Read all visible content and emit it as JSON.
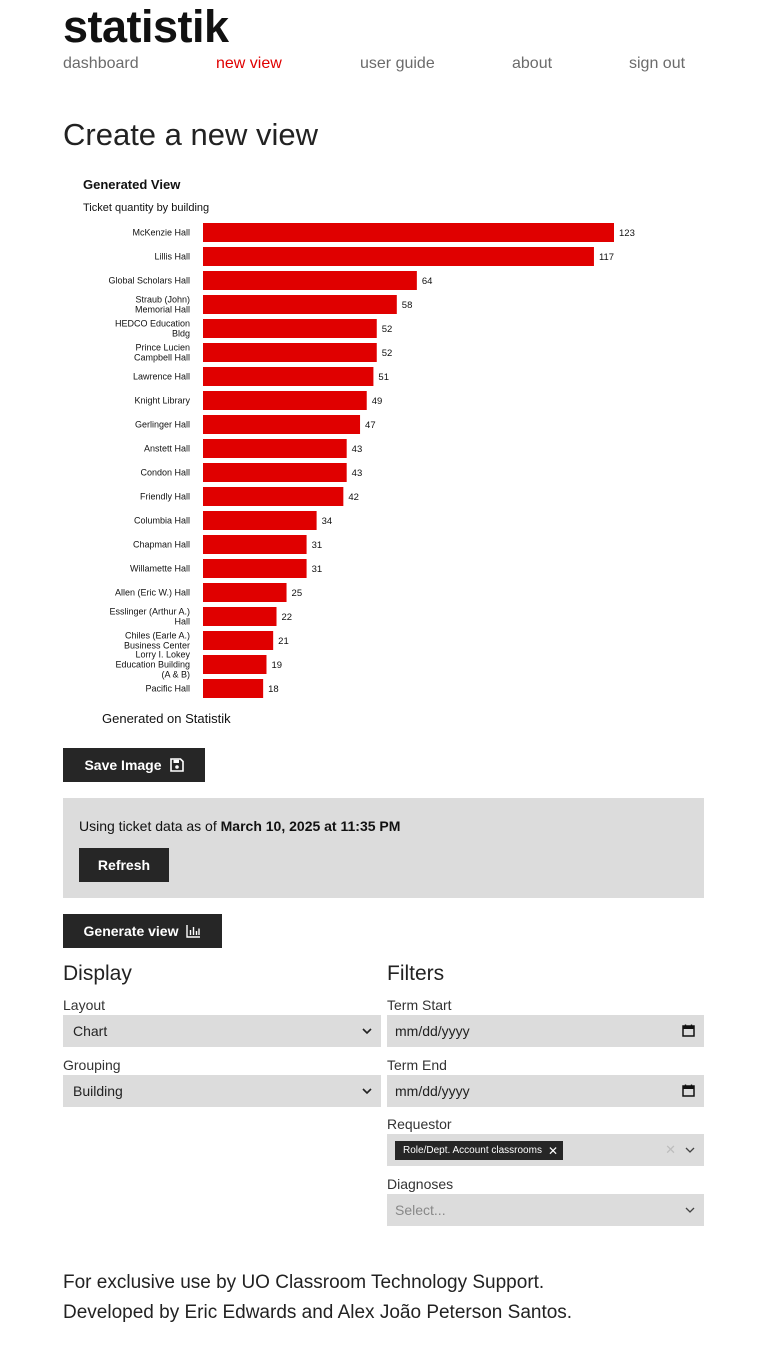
{
  "brand": "statistik",
  "nav": {
    "items": [
      {
        "label": "dashboard",
        "active": false
      },
      {
        "label": "new view",
        "active": true
      },
      {
        "label": "user guide",
        "active": false
      },
      {
        "label": "about",
        "active": false
      },
      {
        "label": "sign out",
        "active": false
      }
    ]
  },
  "page_title": "Create a new view",
  "chart_data": {
    "type": "bar",
    "orientation": "horizontal",
    "title": "Generated View",
    "subtitle": "Ticket quantity by building",
    "footer": "Generated on Statistik",
    "bar_color": "#e00000",
    "categories": [
      [
        "McKenzie Hall"
      ],
      [
        "Lillis Hall"
      ],
      [
        "Global Scholars Hall"
      ],
      [
        "Straub (John)",
        "Memorial Hall"
      ],
      [
        "HEDCO Education",
        "Bldg"
      ],
      [
        "Prince Lucien",
        "Campbell Hall"
      ],
      [
        "Lawrence Hall"
      ],
      [
        "Knight Library"
      ],
      [
        "Gerlinger Hall"
      ],
      [
        "Anstett Hall"
      ],
      [
        "Condon Hall"
      ],
      [
        "Friendly Hall"
      ],
      [
        "Columbia Hall"
      ],
      [
        "Chapman Hall"
      ],
      [
        "Willamette Hall"
      ],
      [
        "Allen (Eric W.) Hall"
      ],
      [
        "Esslinger (Arthur A.)",
        "Hall"
      ],
      [
        "Chiles (Earle A.)",
        "Business Center"
      ],
      [
        "Lorry I. Lokey",
        "Education Building",
        "(A & B)"
      ],
      [
        "Pacific Hall"
      ]
    ],
    "values": [
      123,
      117,
      64,
      58,
      52,
      52,
      51,
      49,
      47,
      43,
      43,
      42,
      34,
      31,
      31,
      25,
      22,
      21,
      19,
      18
    ],
    "xlim": [
      0,
      123
    ],
    "grid": false,
    "legend": "none"
  },
  "save_image_label": "Save Image",
  "data_status": {
    "prefix": "Using ticket data as of ",
    "timestamp": "March 10, 2025 at 11:35 PM",
    "refresh_label": "Refresh"
  },
  "generate_label": "Generate view",
  "display": {
    "heading": "Display",
    "layout_label": "Layout",
    "layout_value": "Chart",
    "grouping_label": "Grouping",
    "grouping_value": "Building"
  },
  "filters": {
    "heading": "Filters",
    "term_start_label": "Term Start",
    "term_start_placeholder": "mm/dd/yyyy",
    "term_end_label": "Term End",
    "term_end_placeholder": "mm/dd/yyyy",
    "requestor_label": "Requestor",
    "requestor_tag": "Role/Dept. Account classrooms",
    "diagnoses_label": "Diagnoses",
    "diagnoses_placeholder": "Select..."
  },
  "footer": {
    "line1": "For exclusive use by UO Classroom Technology Support.",
    "line2": "Developed by Eric Edwards and Alex João Peterson Santos."
  },
  "colors": {
    "accent": "#e00000",
    "button": "#262626",
    "panel": "#dcdcdc"
  }
}
